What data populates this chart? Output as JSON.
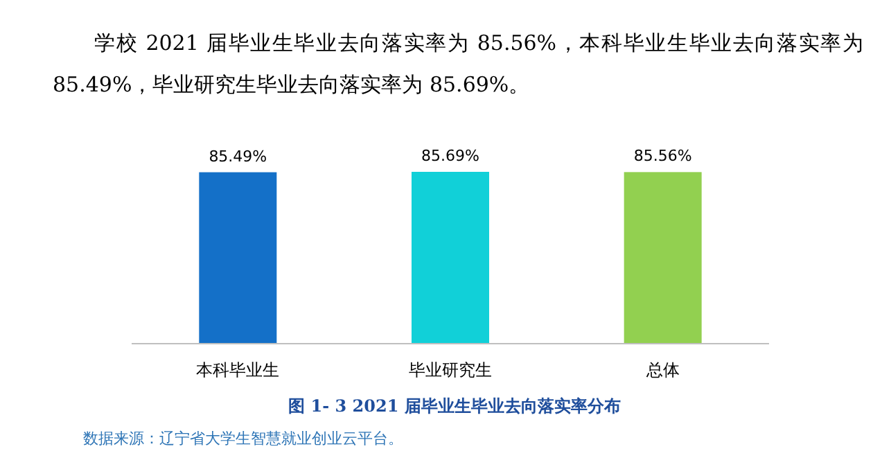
{
  "chart_data": {
    "type": "bar",
    "title": "图 1- 3  2021 届毕业生毕业去向落实率分布",
    "categories": [
      "本科毕业生",
      "毕业研究生",
      "总体"
    ],
    "values": [
      85.49,
      85.69,
      85.56
    ],
    "colors": [
      "#1470c8",
      "#11d0d8",
      "#92d050"
    ],
    "value_labels": [
      "85.49%",
      "85.69%",
      "85.56%"
    ],
    "annotations": [
      "学校 2021 届毕业生毕业去向落实率为 85.56%，本科毕业生毕业去向落实率为 85.49%，毕业研究生毕业去向落实率为 85.69%。",
      "数据来源：辽宁省大学生智慧就业创业云平台。"
    ]
  }
}
